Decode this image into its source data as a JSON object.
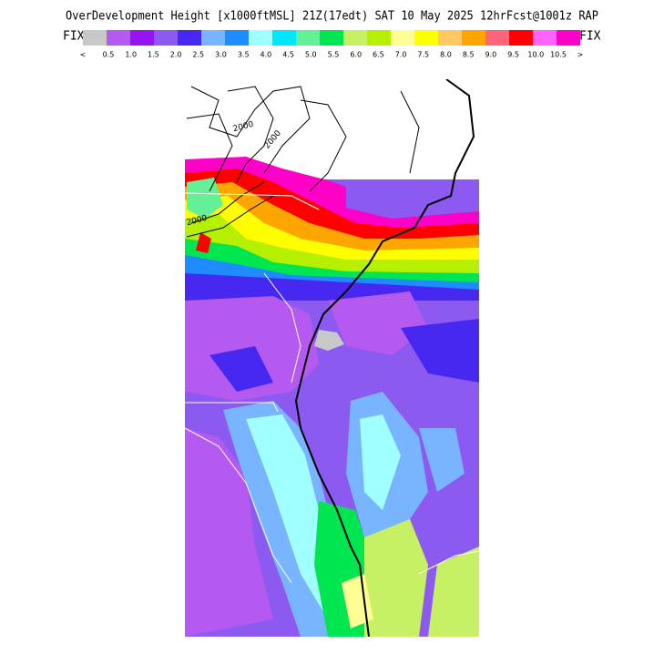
{
  "header": {
    "title": "OverDevelopment Height [x1000ftMSL] 21Z(17edt) SAT 10 May 2025 12hrFcst@1001z RAP",
    "fix_left": "FIX",
    "fix_right": "FIX"
  },
  "colorbar": {
    "labels": [
      "<",
      "0.5",
      "1.0",
      "1.5",
      "2.0",
      "2.5",
      "3.0",
      "3.5",
      "4.0",
      "4.5",
      "5.0",
      "5.5",
      "6.0",
      "6.5",
      "7.0",
      "7.5",
      "8.0",
      "8.5",
      "9.0",
      "9.5",
      "10.0",
      "10.5",
      ">"
    ],
    "colors": [
      "#c8c8c8",
      "#b45af0",
      "#9614f0",
      "#8c5af0",
      "#4628f0",
      "#78b4ff",
      "#1e8cff",
      "#a0ffff",
      "#00e6ff",
      "#64f096",
      "#00e650",
      "#c8f064",
      "#b4f000",
      "#ffff96",
      "#ffff00",
      "#ffc864",
      "#ffa500",
      "#ff6478",
      "#ff0000",
      "#ff64ff",
      "#ff00c8"
    ]
  },
  "map": {
    "contour_labels": [
      "2000",
      "2000",
      "2000"
    ]
  }
}
